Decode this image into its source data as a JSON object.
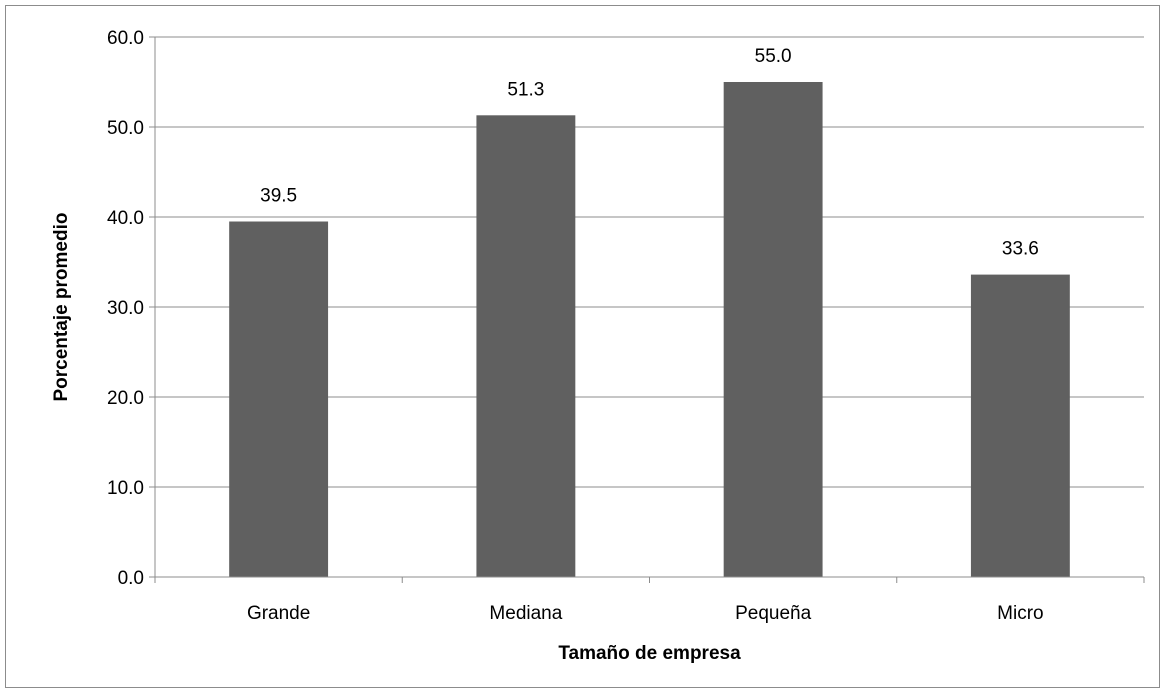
{
  "chart_data": {
    "type": "bar",
    "categories": [
      "Grande",
      "Mediana",
      "Pequeña",
      "Micro"
    ],
    "values": [
      39.5,
      51.3,
      55.0,
      33.6
    ],
    "data_labels": [
      "39.5",
      "51.3",
      "55.0",
      "33.6"
    ],
    "title": "",
    "xlabel": "Tamaño de empresa",
    "ylabel": "Porcentaje promedio",
    "ylim": [
      0,
      60
    ],
    "yticks": [
      0,
      10,
      20,
      30,
      40,
      50,
      60
    ],
    "ytick_labels": [
      "0.0",
      "10.0",
      "20.0",
      "30.0",
      "40.0",
      "50.0",
      "60.0"
    ],
    "grid": true,
    "legend": "none",
    "bar_color": "#606060",
    "grid_color": "#8c8c8c"
  }
}
